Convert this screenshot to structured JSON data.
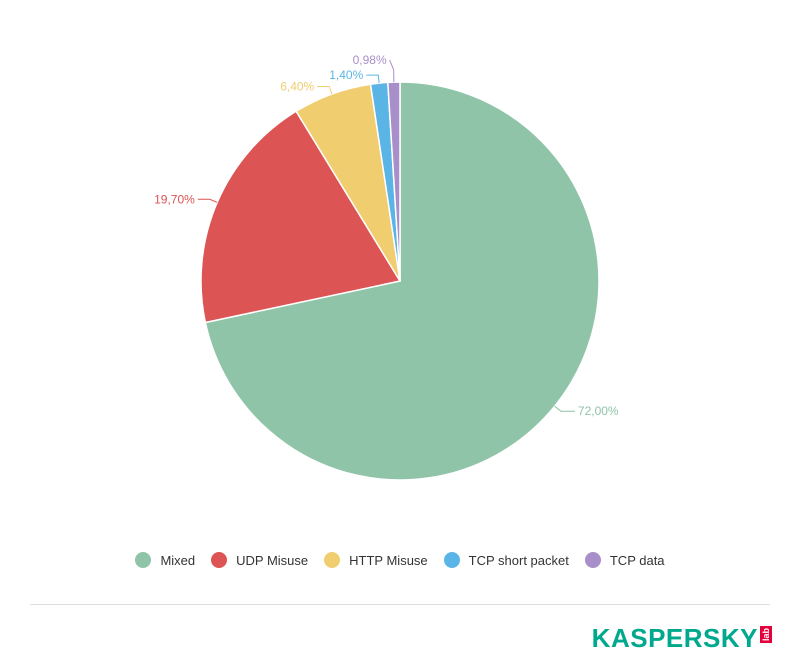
{
  "chart_data": {
    "type": "pie",
    "categories": [
      "Mixed",
      "UDP Misuse",
      "HTTP Misuse",
      "TCP short packet",
      "TCP data"
    ],
    "values": [
      72.0,
      19.7,
      6.4,
      1.4,
      0.98
    ],
    "value_labels": [
      "72,00%",
      "19,70%",
      "6,40%",
      "1,40%",
      "0,98%"
    ],
    "colors": [
      "#8fc4a8",
      "#dc5454",
      "#f0cd6e",
      "#5ab5e6",
      "#a98fc9"
    ],
    "start_angle_deg": 0,
    "direction": "clockwise",
    "legend_position": "bottom",
    "title": ""
  },
  "legend": {
    "items": [
      {
        "label": "Mixed",
        "color": "#8fc4a8"
      },
      {
        "label": "UDP Misuse",
        "color": "#dc5454"
      },
      {
        "label": "HTTP Misuse",
        "color": "#f0cd6e"
      },
      {
        "label": "TCP short packet",
        "color": "#5ab5e6"
      },
      {
        "label": "TCP data",
        "color": "#a98fc9"
      }
    ]
  },
  "branding": {
    "logo_text": "KASPERSKY",
    "logo_sub": "lab",
    "logo_color": "#00a88e",
    "logo_sub_color": "#e3003b"
  }
}
